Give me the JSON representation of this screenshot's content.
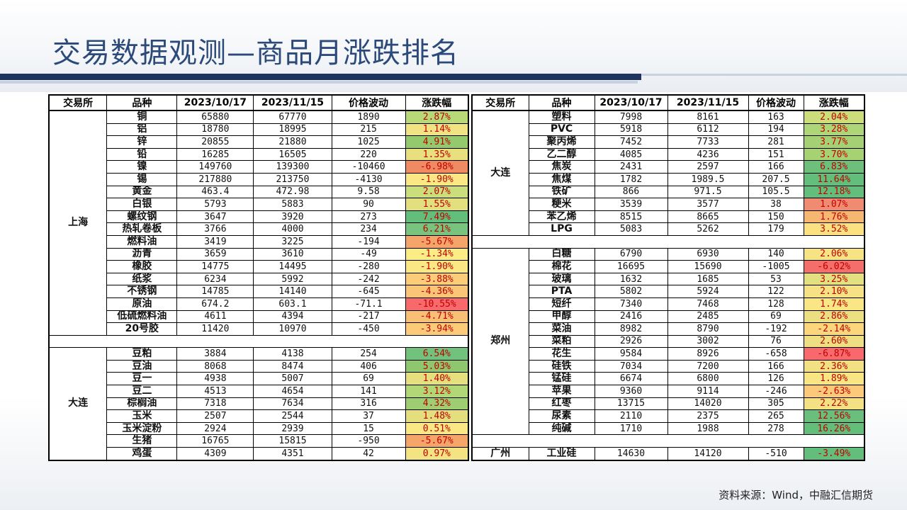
{
  "title": "交易数据观测—商品月涨跌排名",
  "source": "资料来源：Wind，中融汇信期货",
  "headers": [
    "交易所",
    "品种",
    "2023/10/17",
    "2023/11/15",
    "价格波动",
    "涨跌幅"
  ],
  "left": {
    "groups": [
      {
        "exchange": "上海",
        "rows": [
          {
            "name": "铜",
            "v1": "65880",
            "v2": "67770",
            "chg": "1890",
            "pct": "2.87%",
            "color": "#b8d977"
          },
          {
            "name": "铝",
            "v1": "18780",
            "v2": "18995",
            "chg": "215",
            "pct": "1.14%",
            "color": "#f1e383"
          },
          {
            "name": "锌",
            "v1": "20855",
            "v2": "21880",
            "chg": "1025",
            "pct": "4.91%",
            "color": "#94c96e"
          },
          {
            "name": "铅",
            "v1": "16285",
            "v2": "16505",
            "chg": "220",
            "pct": "1.35%",
            "color": "#e8e07f"
          },
          {
            "name": "镍",
            "v1": "149760",
            "v2": "139300",
            "chg": "-10460",
            "pct": "-6.98%",
            "color": "#f08a62"
          },
          {
            "name": "锡",
            "v1": "217880",
            "v2": "213750",
            "chg": "-4130",
            "pct": "-1.90%",
            "color": "#fbe784"
          },
          {
            "name": "黄金",
            "v1": "463.4",
            "v2": "472.98",
            "chg": "9.58",
            "pct": "2.07%",
            "color": "#cade7b"
          },
          {
            "name": "白银",
            "v1": "5793",
            "v2": "5883",
            "chg": "90",
            "pct": "1.55%",
            "color": "#e2df7e"
          },
          {
            "name": "螺纹钢",
            "v1": "3647",
            "v2": "3920",
            "chg": "273",
            "pct": "7.49%",
            "color": "#63be7b"
          },
          {
            "name": "热轧卷板",
            "v1": "3766",
            "v2": "4000",
            "chg": "234",
            "pct": "6.21%",
            "color": "#78c37d"
          },
          {
            "name": "燃料油",
            "v1": "3419",
            "v2": "3225",
            "chg": "-194",
            "pct": "-5.67%",
            "color": "#f5a56a"
          },
          {
            "name": "沥青",
            "v1": "3659",
            "v2": "3610",
            "chg": "-49",
            "pct": "-1.34%",
            "color": "#fcec85"
          },
          {
            "name": "橡胶",
            "v1": "14775",
            "v2": "14495",
            "chg": "-280",
            "pct": "-1.90%",
            "color": "#fbe784"
          },
          {
            "name": "纸浆",
            "v1": "6234",
            "v2": "5992",
            "chg": "-242",
            "pct": "-3.88%",
            "color": "#fbcc7a"
          },
          {
            "name": "不锈钢",
            "v1": "14785",
            "v2": "14140",
            "chg": "-645",
            "pct": "-4.36%",
            "color": "#fac577"
          },
          {
            "name": "原油",
            "v1": "674.2",
            "v2": "603.1",
            "chg": "-71.1",
            "pct": "-10.55%",
            "color": "#f8696b"
          },
          {
            "name": "低硫燃料油",
            "v1": "4611",
            "v2": "4394",
            "chg": "-217",
            "pct": "-4.71%",
            "color": "#f9bf75"
          },
          {
            "name": "20号胶",
            "v1": "11420",
            "v2": "10970",
            "chg": "-450",
            "pct": "-3.94%",
            "color": "#fbcb7a"
          }
        ]
      },
      {
        "exchange": "大连",
        "rows": [
          {
            "name": "豆粕",
            "v1": "3884",
            "v2": "4138",
            "chg": "254",
            "pct": "6.54%",
            "color": "#72c17c"
          },
          {
            "name": "豆油",
            "v1": "8068",
            "v2": "8474",
            "chg": "406",
            "pct": "5.03%",
            "color": "#8fc76e"
          },
          {
            "name": "豆一",
            "v1": "4938",
            "v2": "5007",
            "chg": "69",
            "pct": "1.40%",
            "color": "#e6df7f"
          },
          {
            "name": "豆二",
            "v1": "4513",
            "v2": "4654",
            "chg": "141",
            "pct": "3.12%",
            "color": "#b2d776"
          },
          {
            "name": "棕榈油",
            "v1": "7318",
            "v2": "7634",
            "chg": "316",
            "pct": "4.32%",
            "color": "#9fcd72"
          },
          {
            "name": "玉米",
            "v1": "2507",
            "v2": "2544",
            "chg": "37",
            "pct": "1.48%",
            "color": "#e4de7e"
          },
          {
            "name": "玉米淀粉",
            "v1": "2924",
            "v2": "2939",
            "chg": "15",
            "pct": "0.51%",
            "color": "#fbe884"
          },
          {
            "name": "生猪",
            "v1": "16765",
            "v2": "15815",
            "chg": "-950",
            "pct": "-5.67%",
            "color": "#f5a56a"
          },
          {
            "name": "鸡蛋",
            "v1": "4309",
            "v2": "4351",
            "chg": "42",
            "pct": "0.97%",
            "color": "#f4e383"
          }
        ]
      }
    ]
  },
  "right": {
    "groups": [
      {
        "exchange": "大连",
        "rows": [
          {
            "name": "塑料",
            "v1": "7998",
            "v2": "8161",
            "chg": "163",
            "pct": "2.04%",
            "color": "#cbde7b"
          },
          {
            "name": "PVC",
            "v1": "5918",
            "v2": "6112",
            "chg": "194",
            "pct": "3.28%",
            "color": "#aed577"
          },
          {
            "name": "聚丙烯",
            "v1": "7452",
            "v2": "7733",
            "chg": "281",
            "pct": "3.77%",
            "color": "#a5d174"
          },
          {
            "name": "乙二醇",
            "v1": "4085",
            "v2": "4236",
            "chg": "151",
            "pct": "3.70%",
            "color": "#a6d274"
          },
          {
            "name": "焦炭",
            "v1": "2431",
            "v2": "2597",
            "chg": "166",
            "pct": "6.83%",
            "color": "#6dc07c"
          },
          {
            "name": "焦煤",
            "v1": "1782",
            "v2": "1989.5",
            "chg": "207.5",
            "pct": "11.64%",
            "color": "#63be7b"
          },
          {
            "name": "铁矿",
            "v1": "866",
            "v2": "971.5",
            "chg": "105.5",
            "pct": "12.18%",
            "color": "#63be7b"
          },
          {
            "name": "粳米",
            "v1": "3539",
            "v2": "3577",
            "chg": "38",
            "pct": "1.07%",
            "color": "#f08a70"
          },
          {
            "name": "苯乙烯",
            "v1": "8515",
            "v2": "8665",
            "chg": "150",
            "pct": "1.76%",
            "color": "#f6b772"
          },
          {
            "name": "LPG",
            "v1": "5083",
            "v2": "5262",
            "chg": "179",
            "pct": "3.52%",
            "color": "#fbe182"
          }
        ]
      },
      {
        "exchange": "郑州",
        "rows": [
          {
            "name": "白糖",
            "v1": "6790",
            "v2": "6930",
            "chg": "140",
            "pct": "2.06%",
            "color": "#f7e284"
          },
          {
            "name": "棉花",
            "v1": "16695",
            "v2": "15690",
            "chg": "-1005",
            "pct": "-6.02%",
            "color": "#f46e6b"
          },
          {
            "name": "玻璃",
            "v1": "1632",
            "v2": "1685",
            "chg": "53",
            "pct": "3.25%",
            "color": "#e3e081"
          },
          {
            "name": "PTA",
            "v1": "5802",
            "v2": "5924",
            "chg": "122",
            "pct": "2.10%",
            "color": "#f6e284"
          },
          {
            "name": "短纤",
            "v1": "7340",
            "v2": "7468",
            "chg": "128",
            "pct": "1.74%",
            "color": "#fae684"
          },
          {
            "name": "甲醇",
            "v1": "2416",
            "v2": "2485",
            "chg": "69",
            "pct": "2.86%",
            "color": "#ebdf82"
          },
          {
            "name": "菜油",
            "v1": "8982",
            "v2": "8790",
            "chg": "-192",
            "pct": "-2.14%",
            "color": "#fcd67d"
          },
          {
            "name": "菜粕",
            "v1": "2926",
            "v2": "3002",
            "chg": "76",
            "pct": "2.60%",
            "color": "#eedf83"
          },
          {
            "name": "花生",
            "v1": "9584",
            "v2": "8926",
            "chg": "-658",
            "pct": "-6.87%",
            "color": "#f8696b"
          },
          {
            "name": "硅铁",
            "v1": "7034",
            "v2": "7200",
            "chg": "166",
            "pct": "2.36%",
            "color": "#f2e083"
          },
          {
            "name": "锰硅",
            "v1": "6674",
            "v2": "6800",
            "chg": "126",
            "pct": "1.89%",
            "color": "#f9e584"
          },
          {
            "name": "苹果",
            "v1": "9360",
            "v2": "9114",
            "chg": "-246",
            "pct": "-2.63%",
            "color": "#fcc97a"
          },
          {
            "name": "红枣",
            "v1": "13715",
            "v2": "14020",
            "chg": "305",
            "pct": "2.22%",
            "color": "#f4e183"
          },
          {
            "name": "尿素",
            "v1": "2110",
            "v2": "2375",
            "chg": "265",
            "pct": "12.56%",
            "color": "#69bf7b"
          },
          {
            "name": "纯碱",
            "v1": "1710",
            "v2": "1988",
            "chg": "278",
            "pct": "16.26%",
            "color": "#63be7b"
          }
        ]
      },
      {
        "exchange": "广州",
        "rows": [
          {
            "name": "工业硅",
            "v1": "14630",
            "v2": "14120",
            "chg": "-510",
            "pct": "-3.49%",
            "color": "#63be7b"
          }
        ]
      }
    ]
  }
}
